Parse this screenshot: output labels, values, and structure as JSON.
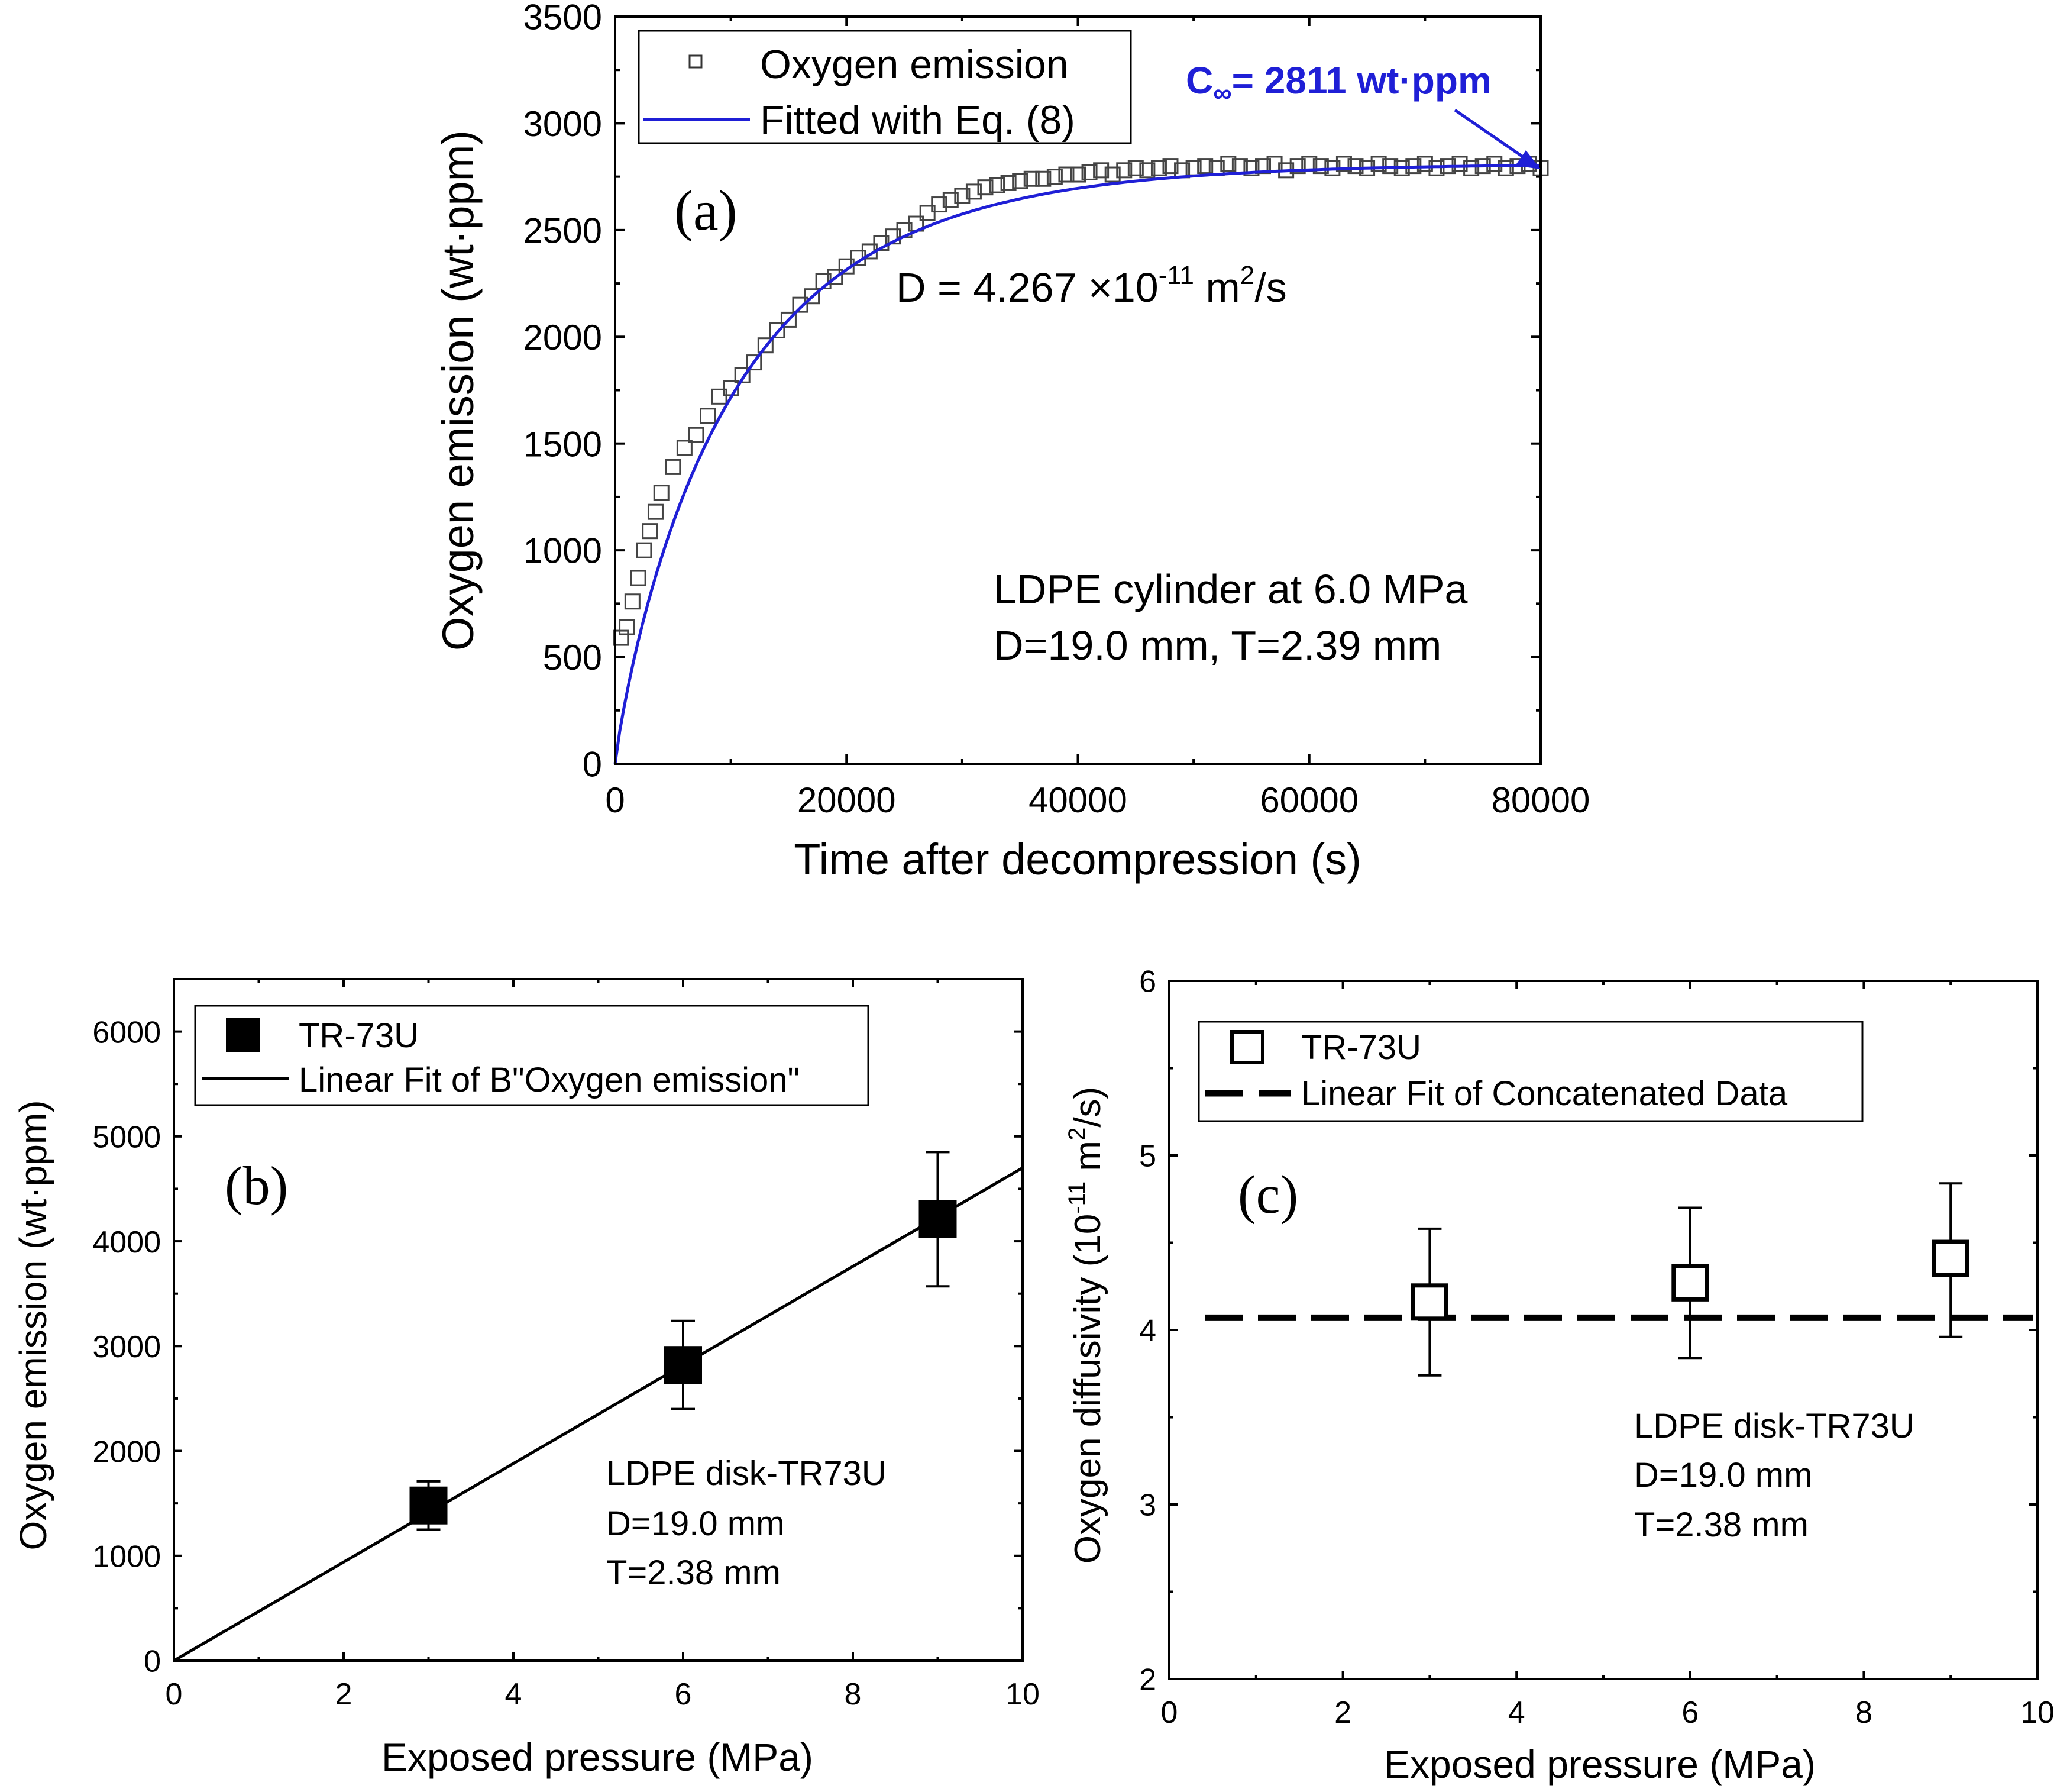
{
  "chart_data": [
    {
      "panel": "(a)",
      "type": "scatter",
      "xlabel": "Time after decompression (s)",
      "ylabel": "Oxygen emission (wt·ppm)",
      "xlim": [
        0,
        80000
      ],
      "ylim": [
        0,
        3500
      ],
      "xticks": [
        0,
        20000,
        40000,
        60000,
        80000
      ],
      "yticks": [
        0,
        500,
        1000,
        1500,
        2000,
        2500,
        3000,
        3500
      ],
      "legend": {
        "position": "top-left",
        "entries": [
          "Oxygen emission",
          "Fitted with Eq. (8)"
        ]
      },
      "series": [
        {
          "name": "Oxygen emission",
          "marker": "open-square",
          "x": [
            500,
            1000,
            1500,
            2000,
            2500,
            3000,
            3500,
            4000,
            5000,
            6000,
            7000,
            8000,
            9000,
            10000,
            11000,
            12000,
            13000,
            14000,
            15000,
            16000,
            17000,
            18000,
            19000,
            20000,
            21000,
            22000,
            23000,
            24000,
            25000,
            26000,
            27000,
            28000,
            29000,
            30000,
            31000,
            32000,
            33000,
            34000,
            35000,
            36000,
            37000,
            38000,
            39000,
            40000,
            41000,
            42000,
            43000,
            44000,
            45000,
            46000,
            47000,
            48000,
            49000,
            50000,
            51000,
            52000,
            53000,
            54000,
            55000,
            56000,
            57000,
            58000,
            59000,
            60000,
            61000,
            62000,
            63000,
            64000,
            65000,
            66000,
            67000,
            68000,
            69000,
            70000,
            71000,
            72000,
            73000,
            74000,
            75000,
            76000,
            77000,
            78000,
            79000,
            80000
          ],
          "y": [
            590,
            640,
            760,
            870,
            1000,
            1090,
            1180,
            1270,
            1390,
            1480,
            1540,
            1630,
            1720,
            1760,
            1820,
            1880,
            1960,
            2030,
            2080,
            2150,
            2190,
            2260,
            2280,
            2330,
            2370,
            2400,
            2440,
            2470,
            2500,
            2530,
            2580,
            2620,
            2640,
            2660,
            2680,
            2700,
            2710,
            2720,
            2730,
            2740,
            2740,
            2750,
            2760,
            2760,
            2770,
            2780,
            2760,
            2780,
            2790,
            2780,
            2790,
            2800,
            2780,
            2790,
            2800,
            2790,
            2810,
            2800,
            2790,
            2800,
            2810,
            2780,
            2800,
            2810,
            2800,
            2790,
            2810,
            2800,
            2790,
            2810,
            2800,
            2790,
            2800,
            2810,
            2790,
            2800,
            2810,
            2790,
            2800,
            2810,
            2790,
            2800,
            2810,
            2790
          ]
        },
        {
          "name": "Fitted with Eq. (8)",
          "line": "solid",
          "color": "#1f1fd6",
          "model": "C = Cinf * (1 - exp(-x / 10700)) approximation of Fickian desorption",
          "c_inf": 2811
        }
      ],
      "annotations": {
        "panel_label": "(a)",
        "diffusivity_prefix": "D = 4.267 ×10",
        "diffusivity_exp": "-11",
        "diffusivity_unit": "m",
        "diffusivity_unit_exp": "2",
        "diffusivity_unit_tail": "/s",
        "cinf_prefix": "C",
        "cinf_sub": "∞",
        "cinf_rest": "= 2811 wt·ppm",
        "sample_line1": "LDPE cylinder at 6.0 MPa",
        "sample_line2": "D=19.0 mm, T=2.39 mm"
      }
    },
    {
      "panel": "(b)",
      "type": "scatter",
      "xlabel": "Exposed pressure (MPa)",
      "ylabel": "Oxygen emission (wt·ppm)",
      "xlim": [
        0,
        10
      ],
      "ylim": [
        0,
        6500
      ],
      "xticks": [
        0,
        2,
        4,
        6,
        8,
        10
      ],
      "yticks": [
        0,
        1000,
        2000,
        3000,
        4000,
        5000,
        6000
      ],
      "legend": {
        "position": "top-left",
        "entries": [
          "TR-73U",
          "Linear Fit of B\"Oxygen emission\""
        ]
      },
      "series": [
        {
          "name": "TR-73U",
          "marker": "filled-square",
          "x": [
            3,
            6,
            9
          ],
          "y": [
            1480,
            2820,
            4210
          ],
          "error": [
            230,
            420,
            640
          ]
        },
        {
          "name": "Linear Fit of B\"Oxygen emission\"",
          "line": "solid",
          "slope": 470,
          "intercept": 0
        }
      ],
      "annotations": {
        "panel_label": "(b)",
        "sample_line1": "LDPE disk-TR73U",
        "sample_line2": "D=19.0 mm",
        "sample_line3": "T=2.38 mm"
      }
    },
    {
      "panel": "(c)",
      "type": "scatter",
      "xlabel": "Exposed pressure (MPa)",
      "ylabel": "Oxygen diffusivity (10",
      "ylabel_exp": "-11",
      "ylabel_tail": " m",
      "ylabel_unit_exp": "2",
      "ylabel_end": "/s)",
      "xlim": [
        0,
        10
      ],
      "ylim": [
        2,
        6
      ],
      "xticks": [
        0,
        2,
        4,
        6,
        8,
        10
      ],
      "yticks": [
        2,
        3,
        4,
        5,
        6
      ],
      "legend": {
        "position": "top-left",
        "entries": [
          "TR-73U",
          "Linear Fit of Concatenated Data"
        ]
      },
      "series": [
        {
          "name": "TR-73U",
          "marker": "open-square",
          "x": [
            3,
            6,
            9
          ],
          "y": [
            4.16,
            4.27,
            4.41
          ],
          "err_low": [
            0.42,
            0.43,
            0.45
          ],
          "err_high": [
            0.42,
            0.43,
            0.43
          ]
        },
        {
          "name": "Linear Fit of Concatenated Data",
          "line": "dashed",
          "value": 4.07
        }
      ],
      "annotations": {
        "panel_label": "(c)",
        "sample_line1": "LDPE disk-TR73U",
        "sample_line2": "D=19.0 mm",
        "sample_line3": "T=2.38 mm"
      }
    }
  ]
}
